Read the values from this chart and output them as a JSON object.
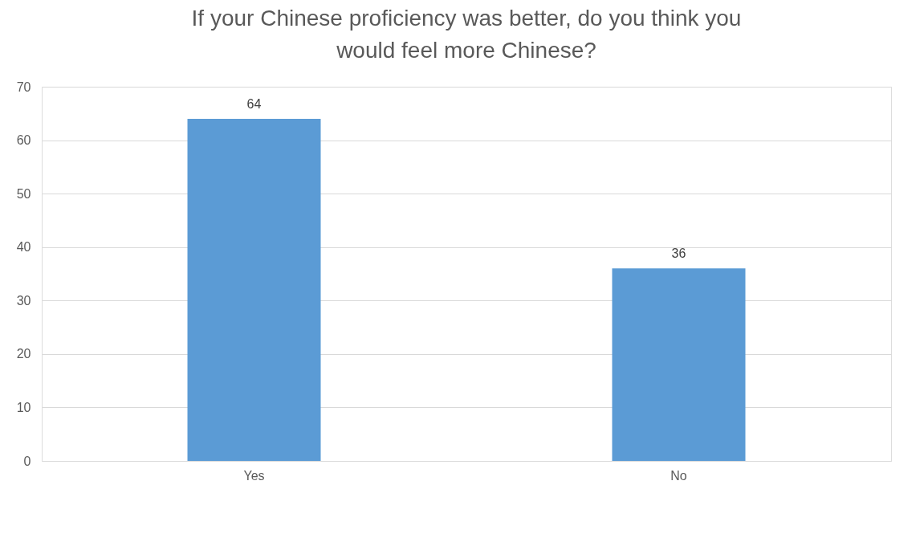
{
  "chart_data": {
    "type": "bar",
    "title": "If your Chinese proficiency was better, do you think you would feel more Chinese?",
    "categories": [
      "Yes",
      "No"
    ],
    "values": [
      64,
      36
    ],
    "color": "#5b9bd5",
    "ylim": [
      0,
      70
    ],
    "yticks": [
      0,
      10,
      20,
      30,
      40,
      50,
      60,
      70
    ],
    "grid": "y",
    "data_labels": true
  }
}
